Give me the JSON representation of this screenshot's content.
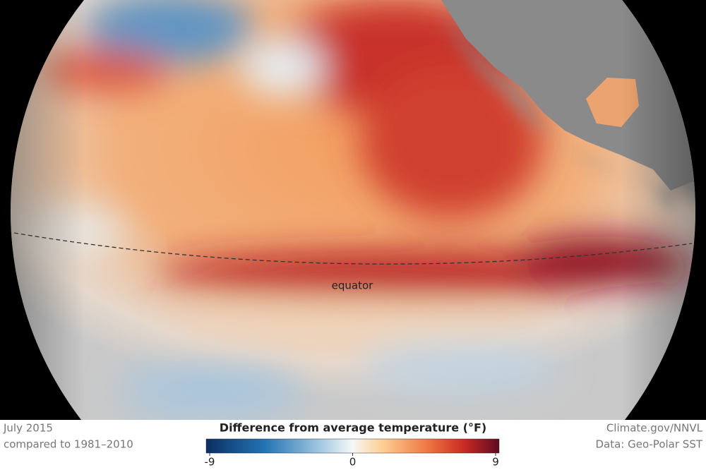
{
  "map": {
    "equator_label": "equator"
  },
  "footer": {
    "date": "July 2015",
    "baseline": "compared to 1981–2010",
    "credit": "Climate.gov/NNVL",
    "source": "Data: Geo-Polar SST"
  },
  "legend": {
    "title": "Difference from average temperature (°F)",
    "ticks": [
      -9,
      0,
      9
    ]
  }
}
